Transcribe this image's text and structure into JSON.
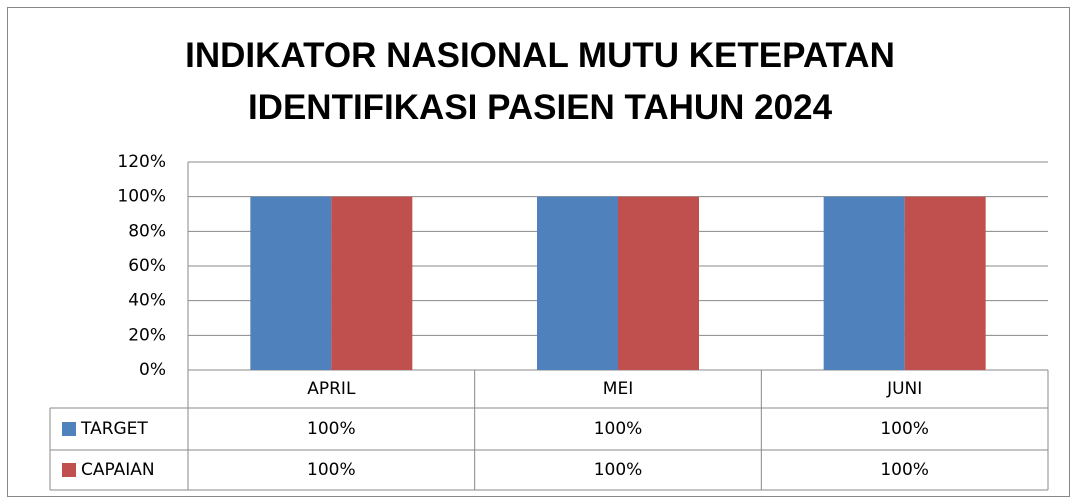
{
  "chart_data": {
    "type": "bar",
    "title": "INDIKATOR NASIONAL MUTU KETEPATAN IDENTIFIKASI PASIEN TAHUN 2024",
    "categories": [
      "APRIL",
      "MEI",
      "JUNI"
    ],
    "series": [
      {
        "name": "TARGET",
        "color": "#4f81bd",
        "values": [
          100,
          100,
          100
        ],
        "value_labels": [
          "100%",
          "100%",
          "100%"
        ]
      },
      {
        "name": "CAPAIAN",
        "color": "#c0504d",
        "values": [
          100,
          100,
          100
        ],
        "value_labels": [
          "100%",
          "100%",
          "100%"
        ]
      }
    ],
    "ylim": [
      0,
      120
    ],
    "yticks": [
      {
        "value": 0,
        "label": "0%"
      },
      {
        "value": 20,
        "label": "20%"
      },
      {
        "value": 40,
        "label": "40%"
      },
      {
        "value": 60,
        "label": "60%"
      },
      {
        "value": 80,
        "label": "80%"
      },
      {
        "value": 100,
        "label": "100%"
      },
      {
        "value": 120,
        "label": "120%"
      }
    ],
    "grid": true
  }
}
